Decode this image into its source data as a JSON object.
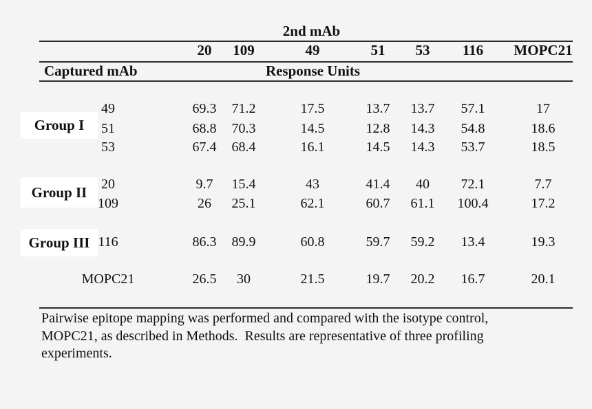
{
  "table": {
    "title": "2nd mAb",
    "column_headers": [
      "20",
      "109",
      "49",
      "51",
      "53",
      "116",
      "MOPC21"
    ],
    "captured_label": "Captured mAb",
    "response_units_label": "Response Units",
    "groups": [
      {
        "label": "Group I",
        "rows": [
          {
            "mab": "49",
            "values": [
              "69.3",
              "71.2",
              "17.5",
              "13.7",
              "13.7",
              "57.1",
              "17"
            ]
          },
          {
            "mab": "51",
            "values": [
              "68.8",
              "70.3",
              "14.5",
              "12.8",
              "14.3",
              "54.8",
              "18.6"
            ]
          },
          {
            "mab": "53",
            "values": [
              "67.4",
              "68.4",
              "16.1",
              "14.5",
              "14.3",
              "53.7",
              "18.5"
            ]
          }
        ]
      },
      {
        "label": "Group II",
        "rows": [
          {
            "mab": "20",
            "values": [
              "9.7",
              "15.4",
              "43",
              "41.4",
              "40",
              "72.1",
              "7.7"
            ]
          },
          {
            "mab": "109",
            "values": [
              "26",
              "25.1",
              "62.1",
              "60.7",
              "61.1",
              "100.4",
              "17.2"
            ]
          }
        ]
      },
      {
        "label": "Group III",
        "rows": [
          {
            "mab": "116",
            "values": [
              "86.3",
              "89.9",
              "60.8",
              "59.7",
              "59.2",
              "13.4",
              "19.3"
            ]
          }
        ]
      },
      {
        "label": "",
        "rows": [
          {
            "mab": "MOPC21",
            "values": [
              "26.5",
              "30",
              "21.5",
              "19.7",
              "20.2",
              "16.7",
              "20.1"
            ]
          }
        ]
      }
    ]
  },
  "caption": {
    "lines": [
      "Pairwise epitope mapping was performed and compared with the isotype control,",
      "MOPC21, as described in Methods.  Results are representative of three profiling",
      "experiments."
    ]
  },
  "colors": {
    "background": "#f4f4f4",
    "highlight": "#ffffff",
    "text": "#111111",
    "rule": "#2b2b2b"
  }
}
